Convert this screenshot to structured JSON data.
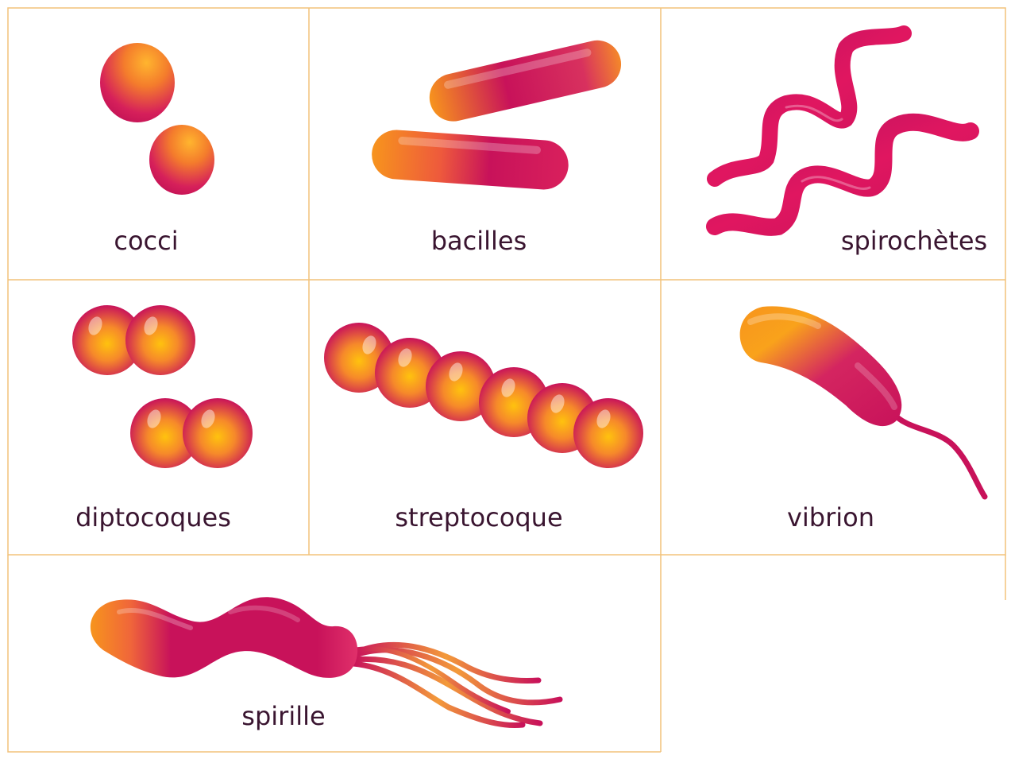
{
  "colors": {
    "grid_line": "#F2C27A",
    "label_text": "#3A1530",
    "bacteria_pink": "#C8125A",
    "bacteria_orange": "#F7931E",
    "bacteria_yellow": "#FFC20E"
  },
  "cells": [
    {
      "id": "cocci",
      "label": "cocci"
    },
    {
      "id": "bacilles",
      "label": "bacilles"
    },
    {
      "id": "spirochetes",
      "label": "spirochètes"
    },
    {
      "id": "diptocoques",
      "label": "diptocoques"
    },
    {
      "id": "streptocoque",
      "label": "streptocoque"
    },
    {
      "id": "vibrion",
      "label": "vibrion"
    },
    {
      "id": "spirille",
      "label": "spirille"
    }
  ]
}
